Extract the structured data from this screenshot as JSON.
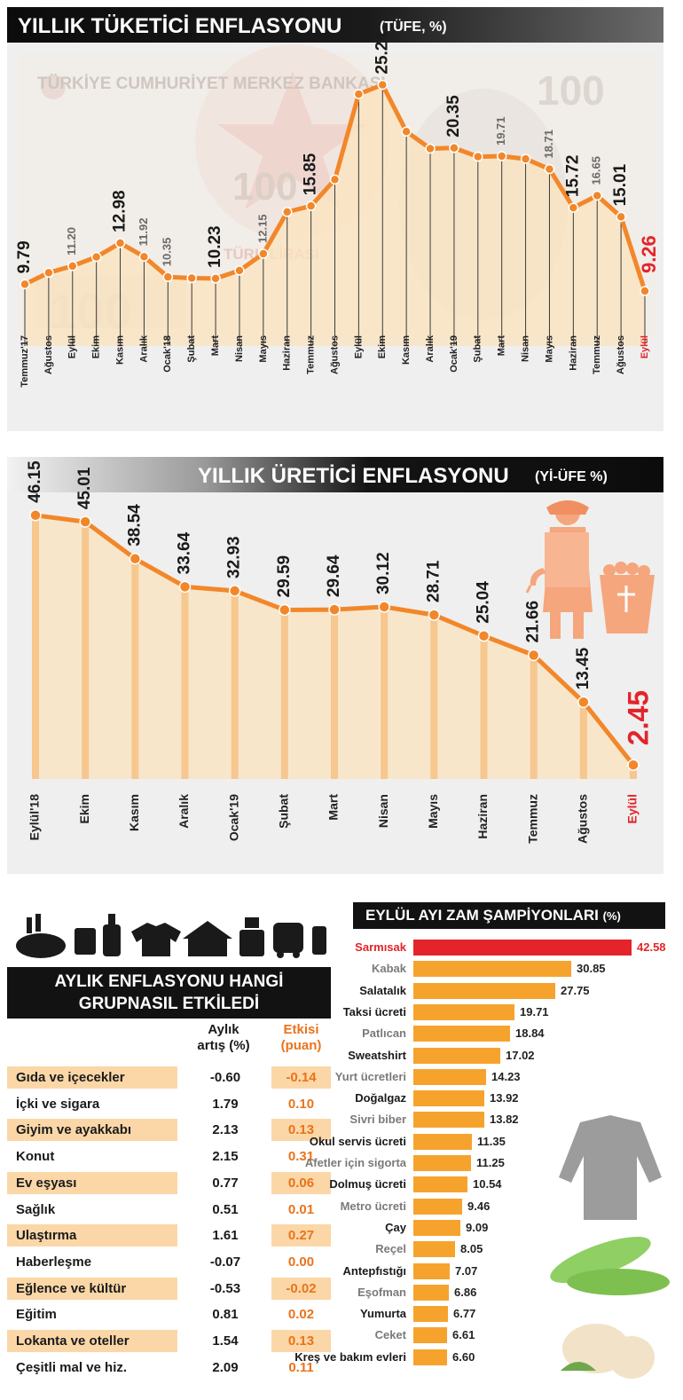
{
  "tufe": {
    "title": "YILLIK TÜKETİCİ ENFLASYONU",
    "subtitle": "(TÜFE, %)",
    "bg_text": "TÜRKİYE CUMHURİYET MERKEZ BANKASI",
    "bg_lira_text": "TÜRK LİRASI",
    "bg_number": "100"
  },
  "yiufe": {
    "title": "YILLIK ÜRETİCİ ENFLASYONU",
    "subtitle": "(Yİ-ÜFE %)"
  },
  "table": {
    "title_line1": "AYLIK ENFLASYONU HANGİ",
    "title_line2": "GRUPNASIL ETKİLEDİ",
    "col1_line1": "Aylık",
    "col1_line2": "artış (%)",
    "col2_line1": "Etkisi",
    "col2_line2": "(puan)",
    "rows": [
      {
        "label": "Gıda ve içecekler",
        "value": "-0.60",
        "effect": "-0.14"
      },
      {
        "label": "İçki ve sigara",
        "value": "1.79",
        "effect": "0.10"
      },
      {
        "label": "Giyim ve ayakkabı",
        "value": "2.13",
        "effect": "0.13"
      },
      {
        "label": "Konut",
        "value": "2.15",
        "effect": "0.31"
      },
      {
        "label": "Ev eşyası",
        "value": "0.77",
        "effect": "0.06"
      },
      {
        "label": "Sağlık",
        "value": "0.51",
        "effect": "0.01"
      },
      {
        "label": "Ulaştırma",
        "value": "1.61",
        "effect": "0.27"
      },
      {
        "label": "Haberleşme",
        "value": "-0.07",
        "effect": "0.00"
      },
      {
        "label": "Eğlence ve kültür",
        "value": "-0.53",
        "effect": "-0.02"
      },
      {
        "label": "Eğitim",
        "value": "0.81",
        "effect": "0.02"
      },
      {
        "label": "Lokanta ve oteller",
        "value": "1.54",
        "effect": "0.13"
      },
      {
        "label": "Çeşitli mal ve hiz.",
        "value": "2.09",
        "effect": "0.11"
      }
    ]
  },
  "zam": {
    "title": "EYLÜL AYI ZAM ŞAMPİYONLARI",
    "unit": "(%)"
  },
  "colors": {
    "orange": "#f39a2c",
    "line": "#f2872a",
    "red": "#e3242b",
    "fill": "#fbe3bd",
    "dark": "#121212",
    "shade": "#fbd7a8"
  },
  "chart_data": [
    {
      "type": "line",
      "title": "YILLIK TÜKETİCİ ENFLASYONU (TÜFE, %)",
      "categories": [
        "Temmuz'17",
        "Ağustos",
        "Eylül",
        "Ekim",
        "Kasım",
        "Aralık",
        "Ocak'18",
        "Şubat",
        "Mart",
        "Nisan",
        "Mayıs",
        "Haziran",
        "Temmuz",
        "Ağustos",
        "Eylül",
        "Ekim",
        "Kasım",
        "Aralık",
        "Ocak'19",
        "Şubat",
        "Mart",
        "Nisan",
        "Mayıs",
        "Haziran",
        "Temmuz",
        "Ağustos",
        "Eylül"
      ],
      "values": [
        9.79,
        10.68,
        11.2,
        11.9,
        12.98,
        11.92,
        10.35,
        10.26,
        10.23,
        10.85,
        12.15,
        15.39,
        15.85,
        17.9,
        24.52,
        25.24,
        21.62,
        20.3,
        20.35,
        19.67,
        19.71,
        19.5,
        18.71,
        15.72,
        16.65,
        15.01,
        9.26
      ],
      "labels": [
        "9.79",
        "",
        "11.20",
        "",
        "12.98",
        "11.92",
        "10.35",
        "",
        "10.23",
        "",
        "12.15",
        "",
        "15.85",
        "",
        "",
        "25.24",
        "",
        "",
        "20.35",
        "",
        "19.71",
        "",
        "18.71",
        "15.72",
        "16.65",
        "15.01",
        "9.26"
      ],
      "ylim": [
        5,
        27
      ]
    },
    {
      "type": "line",
      "title": "YILLIK ÜRETİCİ ENFLASYONU (Yİ-ÜFE %)",
      "categories": [
        "Eylül'18",
        "Ekim",
        "Kasım",
        "Aralık",
        "Ocak'19",
        "Şubat",
        "Mart",
        "Nisan",
        "Mayıs",
        "Haziran",
        "Temmuz",
        "Ağustos",
        "Eylül"
      ],
      "values": [
        46.15,
        45.01,
        38.54,
        33.64,
        32.93,
        29.59,
        29.64,
        30.12,
        28.71,
        25.04,
        21.66,
        13.45,
        2.45
      ],
      "labels": [
        "46.15",
        "45.01",
        "38.54",
        "33.64",
        "32.93",
        "29.59",
        "29.64",
        "30.12",
        "28.71",
        "25.04",
        "21.66",
        "13.45",
        "2.45"
      ],
      "ylim": [
        0,
        50
      ]
    },
    {
      "type": "bar",
      "title": "EYLÜL AYI ZAM ŞAMPİYONLARI (%)",
      "categories": [
        "Sarmısak",
        "Kabak",
        "Salatalık",
        "Taksi ücreti",
        "Patlıcan",
        "Sweatshirt",
        "Yurt ücretleri",
        "Doğalgaz",
        "Sivri biber",
        "Okul servis ücreti",
        "Afetler için sigorta",
        "Dolmuş ücreti",
        "Metro ücreti",
        "Çay",
        "Reçel",
        "Antepfıstığı",
        "Eşofman",
        "Yumurta",
        "Ceket",
        "Kreş ve bakım evleri"
      ],
      "values": [
        42.58,
        30.85,
        27.75,
        19.71,
        18.84,
        17.02,
        14.23,
        13.92,
        13.82,
        11.35,
        11.25,
        10.54,
        9.46,
        9.09,
        8.05,
        7.07,
        6.86,
        6.77,
        6.61,
        6.6
      ],
      "labels": [
        "42.58",
        "30.85",
        "27.75",
        "19.71",
        "18.84",
        "17.02",
        "14.23",
        "13.92",
        "13.82",
        "11.35",
        "11.25",
        "10.54",
        "9.46",
        "9.09",
        "8.05",
        "7.07",
        "6.86",
        "6.77",
        "6.61",
        "6.60"
      ],
      "label_colors": [
        "red",
        "gray",
        "dark",
        "dark",
        "gray",
        "dark",
        "gray",
        "dark",
        "gray",
        "dark",
        "gray",
        "dark",
        "gray",
        "dark",
        "gray",
        "dark",
        "gray",
        "dark",
        "gray",
        "dark"
      ]
    }
  ]
}
